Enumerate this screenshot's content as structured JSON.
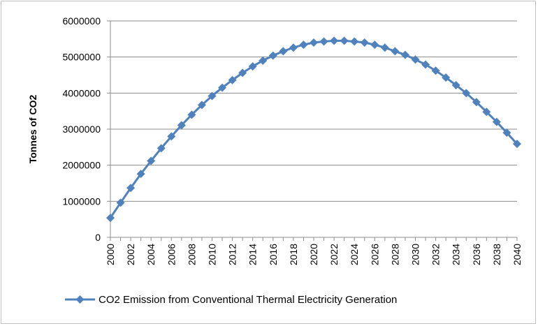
{
  "chart_data": {
    "type": "line",
    "title": "",
    "xlabel": "",
    "ylabel": "Tonnes of CO2",
    "ylim": [
      0,
      6000000
    ],
    "y_ticks": [
      "0",
      "1000000",
      "2000000",
      "3000000",
      "4000000",
      "5000000",
      "6000000"
    ],
    "x_tick_labels": [
      "2000",
      "2002",
      "2004",
      "2006",
      "2008",
      "2010",
      "2012",
      "2014",
      "2016",
      "2018",
      "2020",
      "2022",
      "2024",
      "2026",
      "2028",
      "2030",
      "2032",
      "2034",
      "2036",
      "2038",
      "2040"
    ],
    "grid": "horizontal",
    "legend_position": "bottom",
    "series": [
      {
        "name": "CO2 Emission from Conventional Thermal Electricity Generation",
        "color": "#4f81bd",
        "marker": "diamond",
        "x": [
          2000,
          2001,
          2002,
          2003,
          2004,
          2005,
          2006,
          2007,
          2008,
          2009,
          2010,
          2011,
          2012,
          2013,
          2014,
          2015,
          2016,
          2017,
          2018,
          2019,
          2020,
          2021,
          2022,
          2023,
          2024,
          2025,
          2026,
          2027,
          2028,
          2029,
          2030,
          2031,
          2032,
          2033,
          2034,
          2035,
          2036,
          2037,
          2038,
          2039,
          2040
        ],
        "values": [
          540000,
          960000,
          1370000,
          1760000,
          2120000,
          2470000,
          2800000,
          3110000,
          3400000,
          3670000,
          3920000,
          4150000,
          4360000,
          4560000,
          4740000,
          4900000,
          5040000,
          5160000,
          5260000,
          5340000,
          5400000,
          5430000,
          5450000,
          5450000,
          5430000,
          5400000,
          5340000,
          5260000,
          5160000,
          5060000,
          4930000,
          4790000,
          4620000,
          4430000,
          4220000,
          4000000,
          3750000,
          3480000,
          3200000,
          2900000,
          2590000
        ]
      }
    ]
  }
}
